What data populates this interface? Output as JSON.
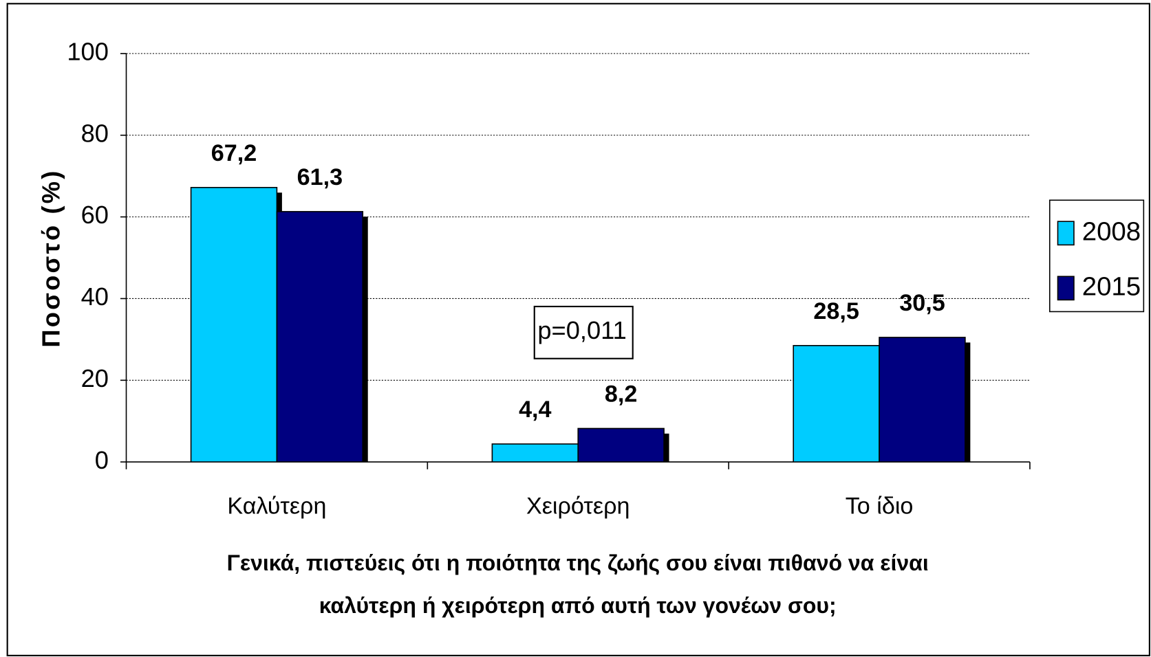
{
  "chart_data": {
    "type": "bar",
    "ylabel": "Ποσοστό (%)",
    "xlabel": [
      "Γενικά, πιστεύεις ότι η ποιότητα της ζωής σου είναι πιθανό να είναι",
      "καλύτερη ή χειρότερη από αυτή των γονέων σου;"
    ],
    "categories": [
      "Καλύτερη",
      "Χειρότερη",
      "Το ίδιο"
    ],
    "series": [
      {
        "name": "2008",
        "color": "#00ccff",
        "values": [
          67.2,
          4.4,
          28.5
        ],
        "value_labels": [
          "67,2",
          "4,4",
          "28,5"
        ]
      },
      {
        "name": "2015",
        "color": "#000080",
        "values": [
          61.3,
          8.2,
          30.5
        ],
        "value_labels": [
          "61,3",
          "8,2",
          "30,5"
        ]
      }
    ],
    "annotation": "p=0,011",
    "ylim": [
      0,
      100
    ],
    "yticks": [
      0,
      20,
      40,
      60,
      80,
      100
    ],
    "grid": true,
    "legend": "right"
  }
}
